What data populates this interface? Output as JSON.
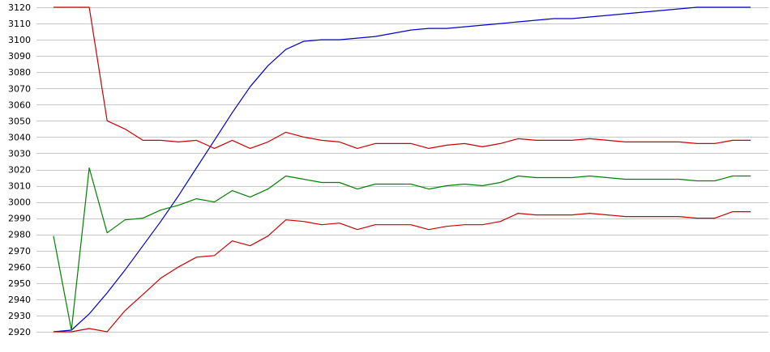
{
  "chart_data": {
    "type": "line",
    "title": "",
    "xlabel": "",
    "ylabel": "",
    "ylim": [
      2920,
      3120
    ],
    "yticks": [
      2920,
      2930,
      2940,
      2950,
      2960,
      2970,
      2980,
      2990,
      3000,
      3010,
      3020,
      3030,
      3040,
      3050,
      3060,
      3070,
      3080,
      3090,
      3100,
      3110,
      3120
    ],
    "grid": true,
    "legend": "none",
    "x": [
      1,
      2,
      3,
      4,
      5,
      6,
      7,
      8,
      9,
      10,
      11,
      12,
      13,
      14,
      15,
      16,
      17,
      18,
      19,
      20,
      21,
      22,
      23,
      24,
      25,
      26,
      27,
      28,
      29,
      30,
      31,
      32,
      33,
      34,
      35,
      36,
      37,
      38,
      39,
      40
    ],
    "series": [
      {
        "color": "#0000cc",
        "values": [
          2920,
          2921,
          2931,
          2944,
          2958,
          2973,
          2988,
          3004,
          3021,
          3038,
          3055,
          3071,
          3084,
          3094,
          3099,
          3100,
          3100,
          3101,
          3102,
          3104,
          3106,
          3107,
          3107,
          3108,
          3109,
          3110,
          3111,
          3112,
          3113,
          3113,
          3114,
          3115,
          3116,
          3117,
          3118,
          3119,
          3120,
          3120,
          3120,
          3120
        ]
      },
      {
        "color": "#cc0000",
        "values": [
          3120,
          3120,
          3120,
          3050,
          3045,
          3038,
          3038,
          3037,
          3038,
          3033,
          3038,
          3033,
          3037,
          3043,
          3040,
          3038,
          3037,
          3033,
          3036,
          3036,
          3036,
          3033,
          3035,
          3036,
          3034,
          3036,
          3039,
          3038,
          3038,
          3038,
          3039,
          3038,
          3037,
          3037,
          3037,
          3037,
          3036,
          3036,
          3038,
          3038
        ]
      },
      {
        "color": "#008000",
        "values": [
          2979,
          2921,
          3021,
          2981,
          2989,
          2990,
          2995,
          2998,
          3002,
          3000,
          3007,
          3003,
          3008,
          3016,
          3014,
          3012,
          3012,
          3008,
          3011,
          3011,
          3011,
          3008,
          3010,
          3011,
          3010,
          3012,
          3016,
          3015,
          3015,
          3015,
          3016,
          3015,
          3014,
          3014,
          3014,
          3014,
          3013,
          3013,
          3016,
          3016
        ]
      },
      {
        "color": "#cc0000",
        "values": [
          2920,
          2920,
          2922,
          2920,
          2933,
          2943,
          2953,
          2960,
          2966,
          2967,
          2976,
          2973,
          2979,
          2989,
          2988,
          2986,
          2987,
          2983,
          2986,
          2986,
          2986,
          2983,
          2985,
          2986,
          2986,
          2988,
          2993,
          2992,
          2992,
          2992,
          2993,
          2992,
          2991,
          2991,
          2991,
          2991,
          2990,
          2990,
          2994,
          2994
        ]
      }
    ]
  }
}
